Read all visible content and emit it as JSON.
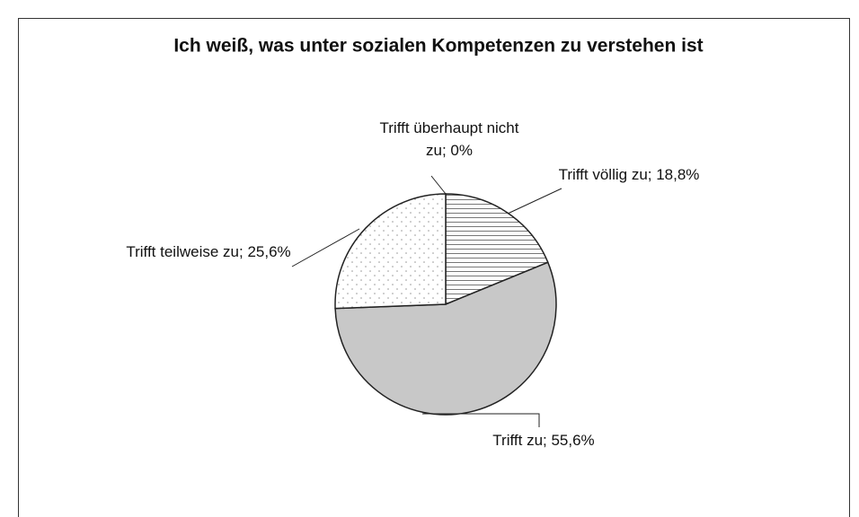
{
  "chart_data": {
    "type": "pie",
    "title": "Ich weiß, was unter sozialen Kompetenzen zu verstehen ist",
    "values": [
      0,
      18.8,
      55.6,
      25.6
    ],
    "value_labels": [
      "Trifft überhaupt nicht zu; 0%",
      "Trifft völlig zu; 18,8%",
      "Trifft zu; 55,6%",
      "Trifft teilweise zu; 25,6%"
    ],
    "colors": [
      "#ffffff",
      "#ffffff",
      "#c8c8c8",
      "#ffffff"
    ],
    "patterns": [
      "none",
      "horizontal-lines",
      "solid",
      "dots"
    ],
    "start_angle": 0,
    "direction": "clockwise"
  }
}
